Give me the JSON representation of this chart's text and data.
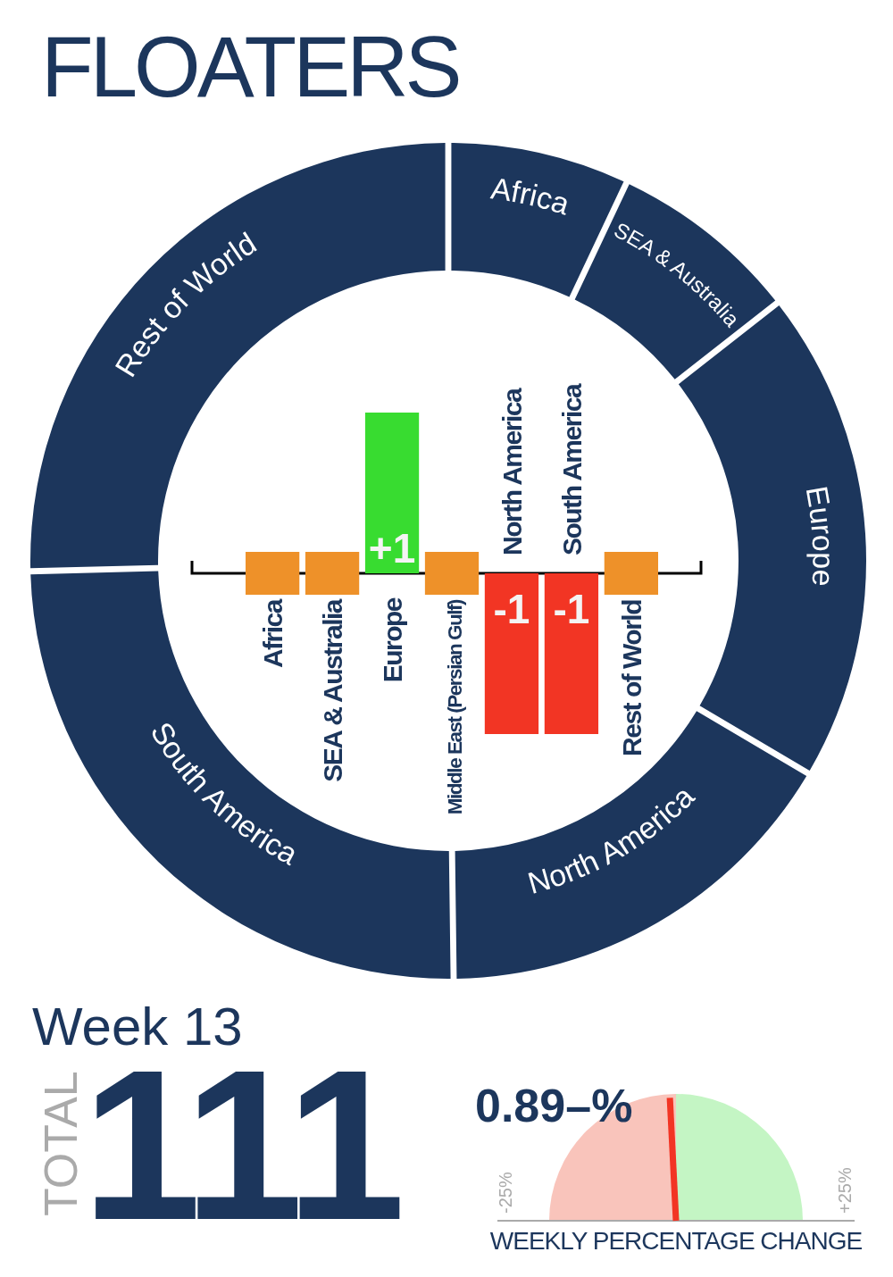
{
  "chart_data": [
    {
      "type": "donut",
      "title": "FLOATERS",
      "categories": [
        "Africa",
        "SEA & Australia",
        "Europe",
        "North America",
        "South America",
        "Rest of World"
      ],
      "values": [
        6.9,
        7.3,
        19.1,
        16.3,
        24.9,
        25.5
      ],
      "colors": [
        "#1c365c",
        "#1c365c",
        "#1c365c",
        "#1c365c",
        "#1c365c",
        "#1c365c"
      ],
      "annotations": [
        "Week 13",
        "TOTAL",
        "111"
      ]
    },
    {
      "type": "bar",
      "categories": [
        "Africa",
        "SEA & Australia",
        "Europe",
        "Middle East (Persian Gulf)",
        "North America",
        "South America",
        "Rest of World"
      ],
      "values": [
        0,
        0,
        1,
        0,
        -1,
        -1,
        0
      ],
      "colors": [
        "#ee9129",
        "#ee9129",
        "#38dc30",
        "#ee9129",
        "#f23524",
        "#f23524",
        "#ee9129"
      ],
      "value_labels": [
        null,
        null,
        "+1",
        null,
        "-1",
        "-1",
        null
      ]
    },
    {
      "type": "pie",
      "categories": [
        "-25%",
        "+25%"
      ],
      "values": [
        50,
        50
      ],
      "colors": [
        "#f9c4bb",
        "#c4f5c4"
      ],
      "needle": "-25%",
      "xlabel": "WEEKLY PERCENTAGE CHANGE",
      "annotations": [
        "0.89–%"
      ]
    }
  ]
}
